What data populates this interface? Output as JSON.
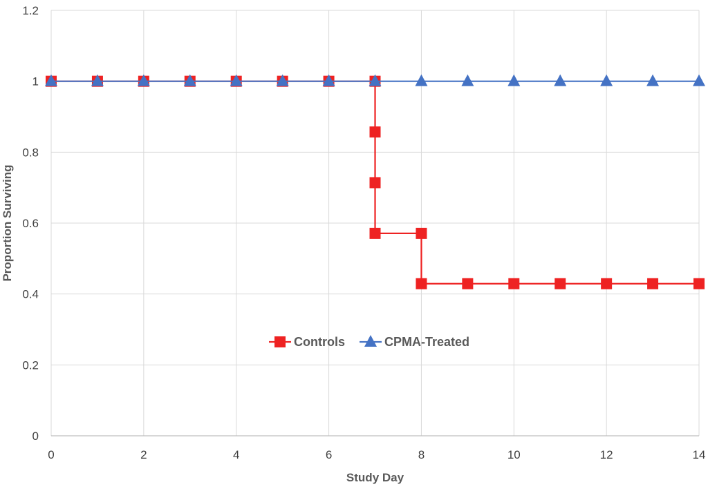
{
  "chart_data": {
    "type": "line",
    "title": "",
    "xlabel": "Study Day",
    "ylabel": "Proportion Surviving",
    "xlim": [
      0,
      14
    ],
    "ylim": [
      0,
      1.2
    ],
    "x_ticks": [
      "0",
      "2",
      "4",
      "6",
      "8",
      "10",
      "12",
      "14"
    ],
    "y_ticks": [
      "0",
      "0.2",
      "0.4",
      "0.6",
      "0.8",
      "1",
      "1.2"
    ],
    "grid": true,
    "legend_position": "center",
    "series": [
      {
        "name": "Controls",
        "color": "#ee2222",
        "marker": "square",
        "points": [
          {
            "x": 0,
            "y": 1
          },
          {
            "x": 1,
            "y": 1
          },
          {
            "x": 2,
            "y": 1
          },
          {
            "x": 3,
            "y": 1
          },
          {
            "x": 4,
            "y": 1
          },
          {
            "x": 5,
            "y": 1
          },
          {
            "x": 6,
            "y": 1
          },
          {
            "x": 7,
            "y": 1
          },
          {
            "x": 7,
            "y": 0.857
          },
          {
            "x": 7,
            "y": 0.714
          },
          {
            "x": 7,
            "y": 0.571
          },
          {
            "x": 8,
            "y": 0.571
          },
          {
            "x": 8,
            "y": 0.429
          },
          {
            "x": 9,
            "y": 0.429
          },
          {
            "x": 10,
            "y": 0.429
          },
          {
            "x": 11,
            "y": 0.429
          },
          {
            "x": 12,
            "y": 0.429
          },
          {
            "x": 13,
            "y": 0.429
          },
          {
            "x": 14,
            "y": 0.429
          }
        ]
      },
      {
        "name": "CPMA-Treated",
        "color": "#4472c4",
        "marker": "triangle",
        "points": [
          {
            "x": 0,
            "y": 1
          },
          {
            "x": 1,
            "y": 1
          },
          {
            "x": 2,
            "y": 1
          },
          {
            "x": 3,
            "y": 1
          },
          {
            "x": 4,
            "y": 1
          },
          {
            "x": 5,
            "y": 1
          },
          {
            "x": 6,
            "y": 1
          },
          {
            "x": 7,
            "y": 1
          },
          {
            "x": 8,
            "y": 1
          },
          {
            "x": 9,
            "y": 1
          },
          {
            "x": 10,
            "y": 1
          },
          {
            "x": 11,
            "y": 1
          },
          {
            "x": 12,
            "y": 1
          },
          {
            "x": 13,
            "y": 1
          },
          {
            "x": 14,
            "y": 1
          }
        ]
      }
    ]
  }
}
